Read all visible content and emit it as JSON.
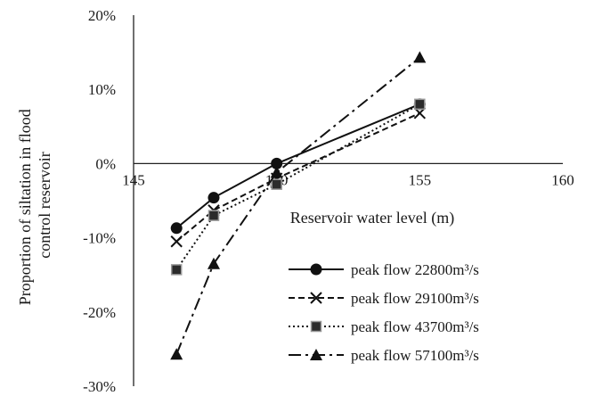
{
  "chart_data": {
    "type": "line",
    "title": "",
    "xlabel": "Reservoir water level (m)",
    "ylabel_lines": [
      "Proportion of siltation in flood",
      "control reservoir"
    ],
    "xlim": [
      145,
      160
    ],
    "ylim": [
      -0.3,
      0.2
    ],
    "x_ticks": [
      {
        "value": 145,
        "label": "145"
      },
      {
        "value": 150,
        "label": "150"
      },
      {
        "value": 155,
        "label": "155"
      },
      {
        "value": 160,
        "label": "160"
      }
    ],
    "y_ticks": [
      {
        "value": 0.2,
        "label": "20%"
      },
      {
        "value": 0.1,
        "label": "10%"
      },
      {
        "value": 0.0,
        "label": "0%"
      },
      {
        "value": -0.1,
        "label": "-10%"
      },
      {
        "value": -0.2,
        "label": "-20%"
      },
      {
        "value": -0.3,
        "label": "-30%"
      }
    ],
    "grid": false,
    "legend_position": "bottom-right",
    "series": [
      {
        "name": "peak flow 22800m³/s",
        "marker": "circle",
        "dash": "solid",
        "x": [
          146.5,
          147.8,
          150.0,
          155.0
        ],
        "y": [
          -0.087,
          -0.046,
          0.0,
          0.08
        ]
      },
      {
        "name": "peak flow 29100m³/s",
        "marker": "x",
        "dash": "dashed",
        "x": [
          146.5,
          147.8,
          150.0,
          155.0
        ],
        "y": [
          -0.105,
          -0.063,
          -0.02,
          0.068
        ]
      },
      {
        "name": "peak flow 43700m³/s",
        "marker": "square",
        "dash": "dotted",
        "x": [
          146.5,
          147.8,
          150.0,
          155.0
        ],
        "y": [
          -0.143,
          -0.07,
          -0.028,
          0.08
        ]
      },
      {
        "name": "peak flow 57100m³/s",
        "marker": "triangle",
        "dash": "dashdot",
        "x": [
          146.5,
          147.8,
          150.0,
          155.0
        ],
        "y": [
          -0.257,
          -0.135,
          -0.012,
          0.143
        ]
      }
    ]
  }
}
